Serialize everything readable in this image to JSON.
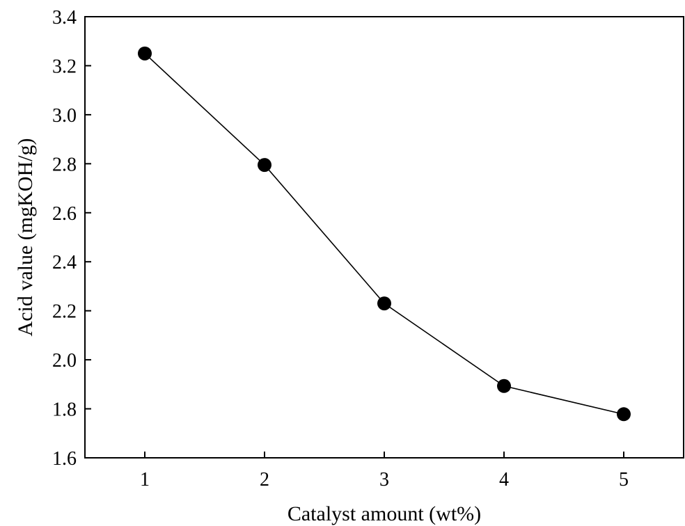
{
  "chart_data": {
    "type": "line",
    "title": "",
    "xlabel": "Catalyst amount (wt%)",
    "ylabel": "Acid value (mgKOH/g)",
    "x": [
      1,
      2,
      3,
      4,
      5
    ],
    "series": [
      {
        "values": [
          3.25,
          2.795,
          2.23,
          1.893,
          1.778
        ],
        "color": "#000000",
        "marker": "filled-circle"
      }
    ],
    "xlim": [
      0.5,
      5.5
    ],
    "ylim": [
      1.6,
      3.4
    ],
    "xticks": [
      1,
      2,
      3,
      4,
      5
    ],
    "xtick_labels": [
      "1",
      "2",
      "3",
      "4",
      "5"
    ],
    "yticks": [
      1.6,
      1.8,
      2.0,
      2.2,
      2.4,
      2.6,
      2.8,
      3.0,
      3.2,
      3.4
    ],
    "ytick_labels": [
      "1.6",
      "1.8",
      "2.0",
      "2.2",
      "2.4",
      "2.6",
      "2.8",
      "3.0",
      "3.2",
      "3.4"
    ],
    "grid": false,
    "legend": "none"
  }
}
